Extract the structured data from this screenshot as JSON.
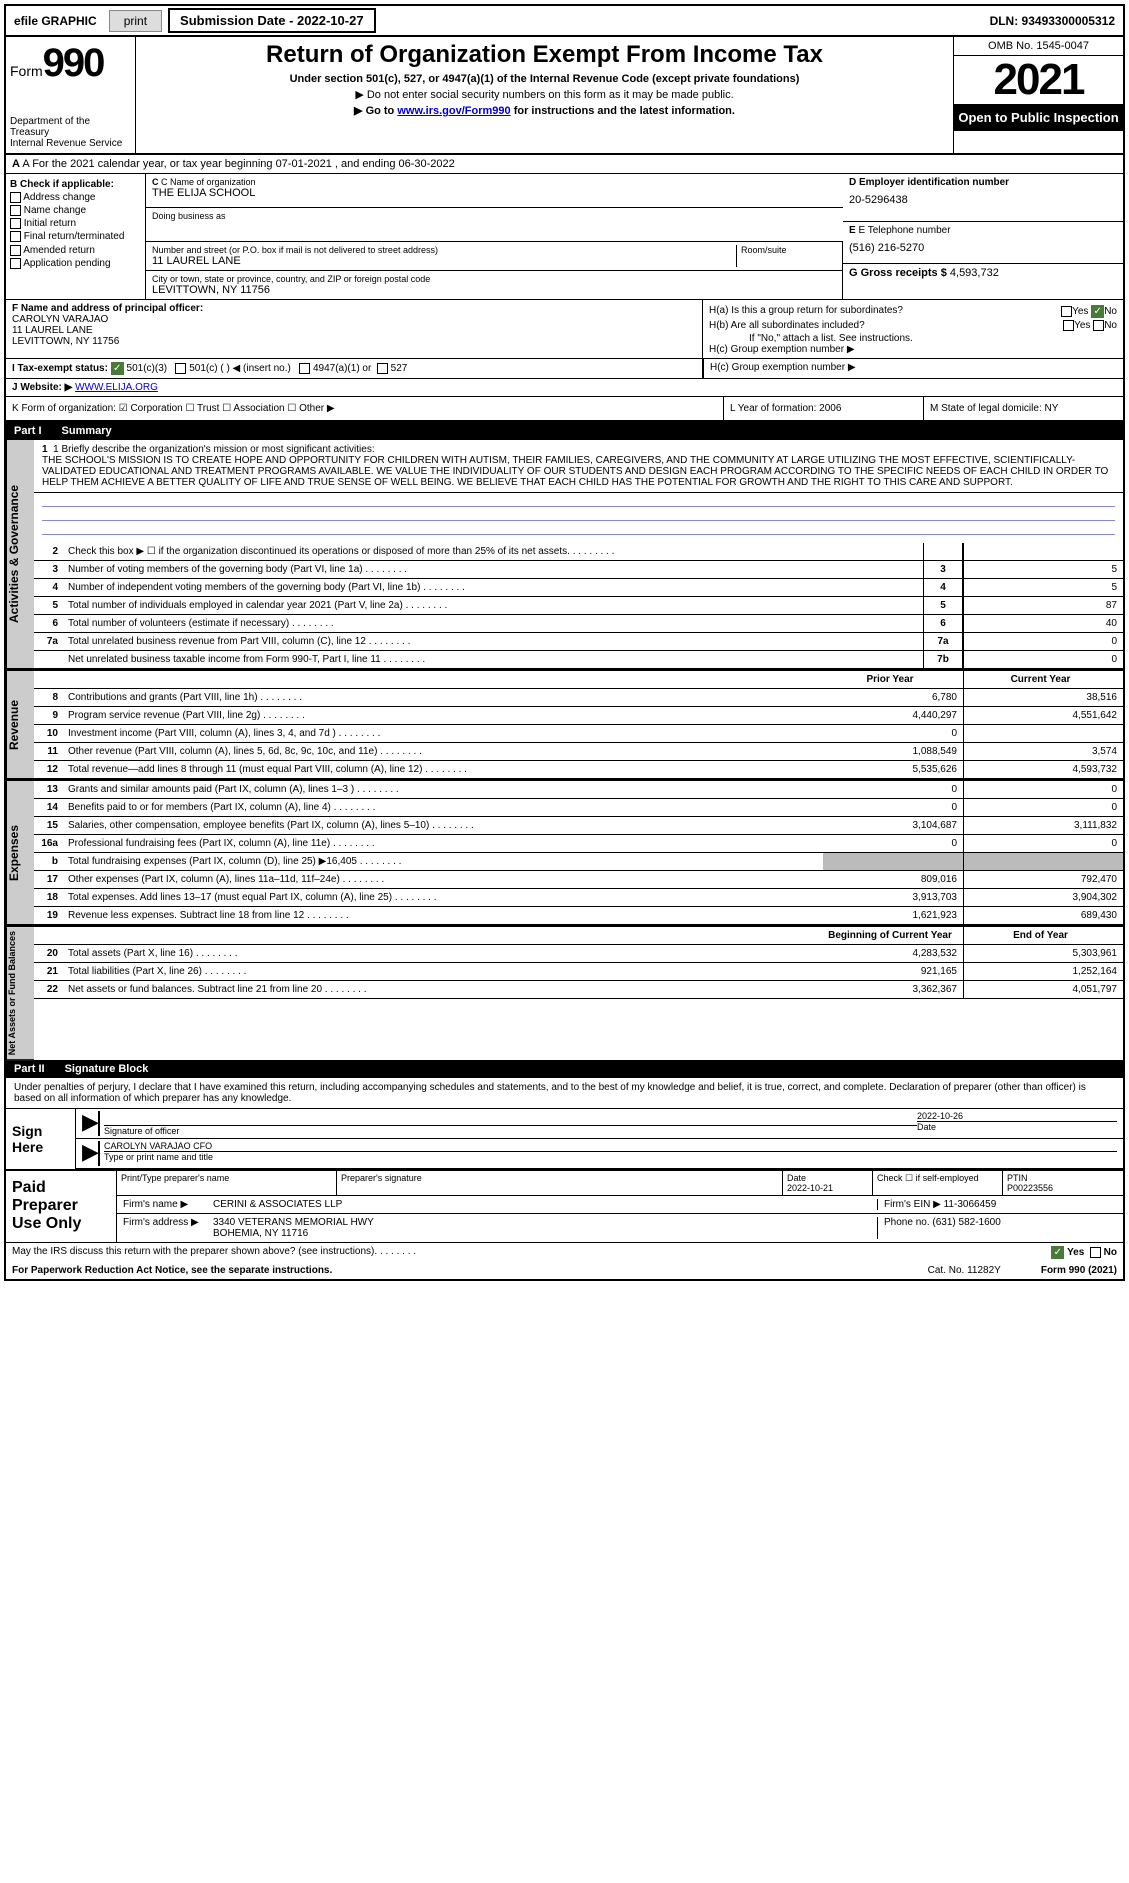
{
  "topbar": {
    "efile": "efile GRAPHIC",
    "print": "print",
    "subdate_label": "Submission Date - 2022-10-27",
    "dln": "DLN: 93493300005312"
  },
  "header": {
    "form_prefix": "Form",
    "form_num": "990",
    "title": "Return of Organization Exempt From Income Tax",
    "subtitle": "Under section 501(c), 527, or 4947(a)(1) of the Internal Revenue Code (except private foundations)",
    "note1": "▶ Do not enter social security numbers on this form as it may be made public.",
    "note2_pre": "▶ Go to ",
    "note2_link": "www.irs.gov/Form990",
    "note2_post": " for instructions and the latest information.",
    "dept": "Department of the Treasury\nInternal Revenue Service",
    "omb": "OMB No. 1545-0047",
    "year": "2021",
    "inspect": "Open to Public Inspection"
  },
  "row_a": "A For the 2021 calendar year, or tax year beginning 07-01-2021   , and ending 06-30-2022",
  "col_b": {
    "hdr": "B Check if applicable:",
    "items": [
      "Address change",
      "Name change",
      "Initial return",
      "Final return/terminated",
      "Amended return",
      "Application pending"
    ]
  },
  "org": {
    "name_lbl": "C Name of organization",
    "name": "THE ELIJA SCHOOL",
    "dba_lbl": "Doing business as",
    "addr_lbl": "Number and street (or P.O. box if mail is not delivered to street address)",
    "addr": "11 LAUREL LANE",
    "suite_lbl": "Room/suite",
    "city_lbl": "City or town, state or province, country, and ZIP or foreign postal code",
    "city": "LEVITTOWN, NY  11756"
  },
  "col_d": {
    "ein_lbl": "D Employer identification number",
    "ein": "20-5296438",
    "tel_lbl": "E Telephone number",
    "tel": "(516) 216-5270",
    "gross_lbl": "G Gross receipts $",
    "gross": "4,593,732"
  },
  "f": {
    "lbl": "F  Name and address of principal officer:",
    "name": "CAROLYN VARAJAO",
    "addr": "11 LAUREL LANE\nLEVITTOWN, NY  11756"
  },
  "h": {
    "a": "H(a)  Is this a group return for subordinates?",
    "b": "H(b)  Are all subordinates included?",
    "bnote": "If \"No,\" attach a list. See instructions.",
    "c": "H(c)  Group exemption number ▶",
    "yes": "Yes",
    "no": "No"
  },
  "i": {
    "lbl": "I  Tax-exempt status:",
    "opt1": "501(c)(3)",
    "opt2": "501(c) (   ) ◀ (insert no.)",
    "opt3": "4947(a)(1) or",
    "opt4": "527"
  },
  "j": {
    "lbl": "J  Website: ▶",
    "val": "WWW.ELIJA.ORG"
  },
  "k": "K Form of organization:   ☑ Corporation  ☐ Trust  ☐ Association  ☐ Other ▶",
  "l": "L Year of formation: 2006",
  "m": "M State of legal domicile: NY",
  "part1": {
    "num": "Part I",
    "title": "Summary"
  },
  "mission": {
    "lbl": "1  Briefly describe the organization's mission or most significant activities:",
    "txt": "THE SCHOOL'S MISSION IS TO CREATE HOPE AND OPPORTUNITY FOR CHILDREN WITH AUTISM, THEIR FAMILIES, CAREGIVERS, AND THE COMMUNITY AT LARGE UTILIZING THE MOST EFFECTIVE, SCIENTIFICALLY-VALIDATED EDUCATIONAL AND TREATMENT PROGRAMS AVAILABLE. WE VALUE THE INDIVIDUALITY OF OUR STUDENTS AND DESIGN EACH PROGRAM ACCORDING TO THE SPECIFIC NEEDS OF EACH CHILD IN ORDER TO HELP THEM ACHIEVE A BETTER QUALITY OF LIFE AND TRUE SENSE OF WELL BEING. WE BELIEVE THAT EACH CHILD HAS THE POTENTIAL FOR GROWTH AND THE RIGHT TO THIS CARE AND SUPPORT."
  },
  "lines_gov": [
    {
      "n": "2",
      "t": "Check this box ▶ ☐ if the organization discontinued its operations or disposed of more than 25% of its net assets.",
      "b": "",
      "v": ""
    },
    {
      "n": "3",
      "t": "Number of voting members of the governing body (Part VI, line 1a)",
      "b": "3",
      "v": "5"
    },
    {
      "n": "4",
      "t": "Number of independent voting members of the governing body (Part VI, line 1b)",
      "b": "4",
      "v": "5"
    },
    {
      "n": "5",
      "t": "Total number of individuals employed in calendar year 2021 (Part V, line 2a)",
      "b": "5",
      "v": "87"
    },
    {
      "n": "6",
      "t": "Total number of volunteers (estimate if necessary)",
      "b": "6",
      "v": "40"
    },
    {
      "n": "7a",
      "t": "Total unrelated business revenue from Part VIII, column (C), line 12",
      "b": "7a",
      "v": "0"
    },
    {
      "n": "",
      "t": "Net unrelated business taxable income from Form 990-T, Part I, line 11",
      "b": "7b",
      "v": "0"
    }
  ],
  "col_headers": {
    "prior": "Prior Year",
    "current": "Current Year",
    "begin": "Beginning of Current Year",
    "end": "End of Year"
  },
  "lines_rev": [
    {
      "n": "8",
      "t": "Contributions and grants (Part VIII, line 1h)",
      "p": "6,780",
      "c": "38,516"
    },
    {
      "n": "9",
      "t": "Program service revenue (Part VIII, line 2g)",
      "p": "4,440,297",
      "c": "4,551,642"
    },
    {
      "n": "10",
      "t": "Investment income (Part VIII, column (A), lines 3, 4, and 7d )",
      "p": "0",
      "c": ""
    },
    {
      "n": "11",
      "t": "Other revenue (Part VIII, column (A), lines 5, 6d, 8c, 9c, 10c, and 11e)",
      "p": "1,088,549",
      "c": "3,574"
    },
    {
      "n": "12",
      "t": "Total revenue—add lines 8 through 11 (must equal Part VIII, column (A), line 12)",
      "p": "5,535,626",
      "c": "4,593,732"
    }
  ],
  "lines_exp": [
    {
      "n": "13",
      "t": "Grants and similar amounts paid (Part IX, column (A), lines 1–3 )",
      "p": "0",
      "c": "0"
    },
    {
      "n": "14",
      "t": "Benefits paid to or for members (Part IX, column (A), line 4)",
      "p": "0",
      "c": "0"
    },
    {
      "n": "15",
      "t": "Salaries, other compensation, employee benefits (Part IX, column (A), lines 5–10)",
      "p": "3,104,687",
      "c": "3,111,832"
    },
    {
      "n": "16a",
      "t": "Professional fundraising fees (Part IX, column (A), line 11e)",
      "p": "0",
      "c": "0"
    },
    {
      "n": "b",
      "t": "Total fundraising expenses (Part IX, column (D), line 25) ▶16,405",
      "p": "",
      "c": "",
      "grey": true
    },
    {
      "n": "17",
      "t": "Other expenses (Part IX, column (A), lines 11a–11d, 11f–24e)",
      "p": "809,016",
      "c": "792,470"
    },
    {
      "n": "18",
      "t": "Total expenses. Add lines 13–17 (must equal Part IX, column (A), line 25)",
      "p": "3,913,703",
      "c": "3,904,302"
    },
    {
      "n": "19",
      "t": "Revenue less expenses. Subtract line 18 from line 12",
      "p": "1,621,923",
      "c": "689,430"
    }
  ],
  "lines_net": [
    {
      "n": "20",
      "t": "Total assets (Part X, line 16)",
      "p": "4,283,532",
      "c": "5,303,961"
    },
    {
      "n": "21",
      "t": "Total liabilities (Part X, line 26)",
      "p": "921,165",
      "c": "1,252,164"
    },
    {
      "n": "22",
      "t": "Net assets or fund balances. Subtract line 21 from line 20",
      "p": "3,362,367",
      "c": "4,051,797"
    }
  ],
  "side_labels": {
    "gov": "Activities & Governance",
    "rev": "Revenue",
    "exp": "Expenses",
    "net": "Net Assets or Fund Balances"
  },
  "part2": {
    "num": "Part II",
    "title": "Signature Block"
  },
  "sig": {
    "decl": "Under penalties of perjury, I declare that I have examined this return, including accompanying schedules and statements, and to the best of my knowledge and belief, it is true, correct, and complete. Declaration of preparer (other than officer) is based on all information of which preparer has any knowledge.",
    "here": "Sign Here",
    "off_lbl": "Signature of officer",
    "date": "2022-10-26",
    "date_lbl": "Date",
    "name": "CAROLYN VARAJAO  CFO",
    "name_lbl": "Type or print name and title"
  },
  "paid": {
    "title": "Paid Preparer Use Only",
    "prep_name_lbl": "Print/Type preparer's name",
    "prep_sig_lbl": "Preparer's signature",
    "date_lbl": "Date",
    "date": "2022-10-21",
    "check_lbl": "Check ☐ if self-employed",
    "ptin_lbl": "PTIN",
    "ptin": "P00223556",
    "firm_lbl": "Firm's name    ▶",
    "firm": "CERINI & ASSOCIATES LLP",
    "ein_lbl": "Firm's EIN ▶",
    "ein": "11-3066459",
    "addr_lbl": "Firm's address ▶",
    "addr": "3340 VETERANS MEMORIAL HWY",
    "addr2": "BOHEMIA, NY  11716",
    "phone_lbl": "Phone no.",
    "phone": "(631) 582-1600"
  },
  "footer": {
    "discuss": "May the IRS discuss this return with the preparer shown above? (see instructions)",
    "yes": "Yes",
    "no": "No",
    "paperwork": "For Paperwork Reduction Act Notice, see the separate instructions.",
    "cat": "Cat. No. 11282Y",
    "form": "Form 990 (2021)"
  }
}
